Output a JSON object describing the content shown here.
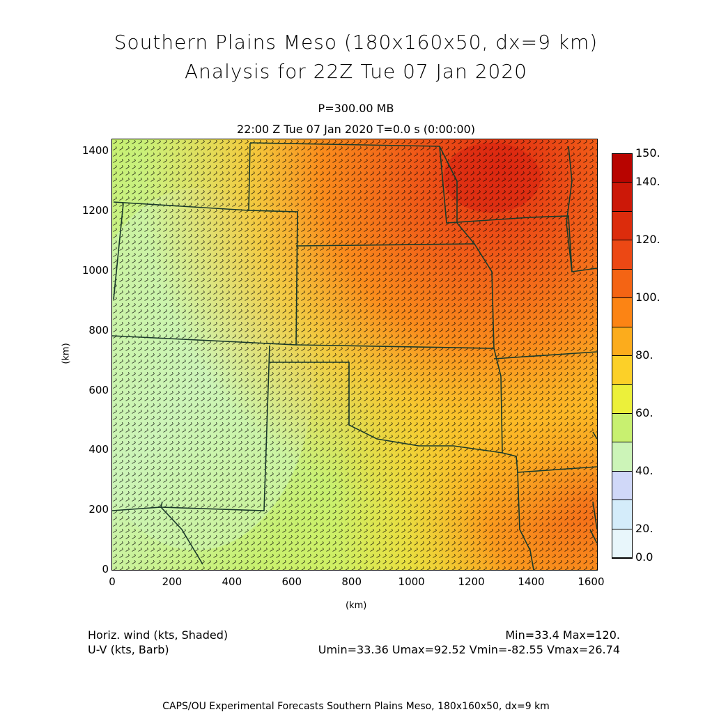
{
  "title": {
    "line1": "Southern Plains Meso (180x160x50, dx=9 km)",
    "line2": "Analysis for 22Z Tue 07 Jan 2020"
  },
  "level": "P=300.00 MB",
  "valid_time": "22:00 Z Tue 07 Jan 2020    T=0.0 s (0:00:00)",
  "axes": {
    "xunit": "(km)",
    "yunit": "(km)",
    "xticks": [
      "0",
      "200",
      "400",
      "600",
      "800",
      "1000",
      "1200",
      "1400",
      "1600"
    ],
    "yticks": [
      "0",
      "200",
      "400",
      "600",
      "800",
      "1000",
      "1200",
      "1400"
    ],
    "xrange": [
      0,
      1620
    ],
    "yrange": [
      0,
      1440
    ]
  },
  "field": {
    "shaded": "Horiz. wind (kts, Shaded)",
    "vectors": "U-V (kts, Barb)",
    "minmax": "Min=33.4 Max=120.",
    "uv_stats": "Umin=33.36 Umax=92.52 Vmin=-82.55 Vmax=26.74"
  },
  "colorbar": {
    "labels": [
      "150.",
      "140.",
      "120.",
      "100.",
      "80.",
      "60.",
      "40.",
      "20.",
      "0.0"
    ],
    "colors": [
      "#e8f6fb",
      "#d4ecfa",
      "#d0d8f8",
      "#ccf4b8",
      "#c8f070",
      "#ecf03a",
      "#fcd028",
      "#fcac1c",
      "#fc8414",
      "#f46414",
      "#ec4814",
      "#dc2c0c",
      "#cc1808",
      "#b80400"
    ]
  },
  "footer": "CAPS/OU Experimental Forecasts  Southern Plains Meso, 180x160x50, dx=9 km"
}
